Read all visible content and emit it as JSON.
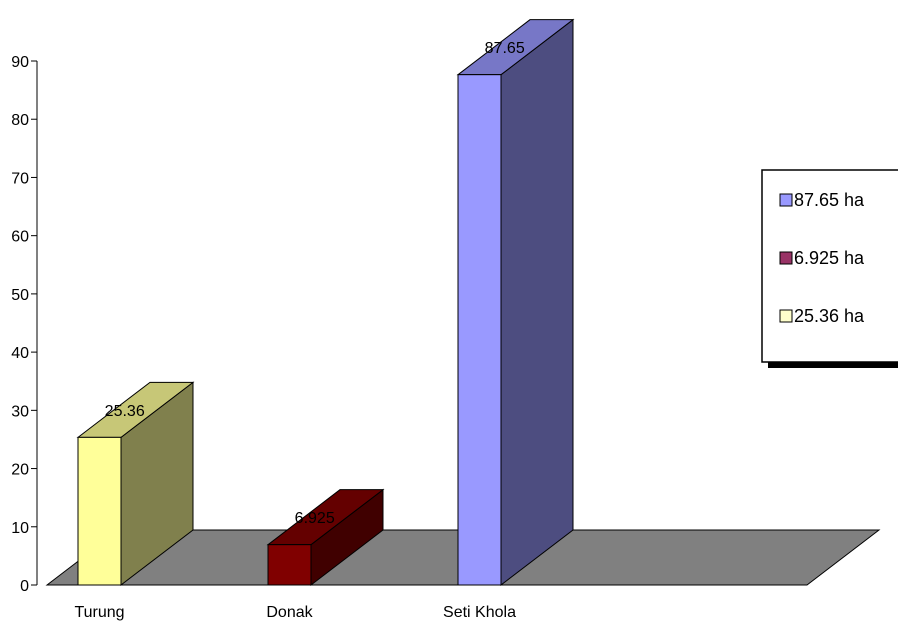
{
  "chart_data": {
    "type": "bar",
    "categories": [
      "Turung",
      "Donak",
      "Seti Khola"
    ],
    "values": [
      25.36,
      6.925,
      87.65
    ],
    "data_labels": [
      "25.36",
      "6.925",
      "87.65"
    ],
    "ylim": [
      0,
      90
    ],
    "yticks": [
      0,
      10,
      20,
      30,
      40,
      50,
      60,
      70,
      80,
      90
    ],
    "legend": {
      "position": "right",
      "entries": [
        {
          "label": "87.65 ha",
          "color": "#9999ff"
        },
        {
          "label": "6.925 ha",
          "color": "#993366"
        },
        {
          "label": "25.36 ha",
          "color": "#ffffcc"
        }
      ]
    },
    "bar_colors": [
      "#ffff99",
      "#800000",
      "#9999ff"
    ],
    "floor_color": "#808080",
    "grid": false,
    "style": "3d-column"
  }
}
